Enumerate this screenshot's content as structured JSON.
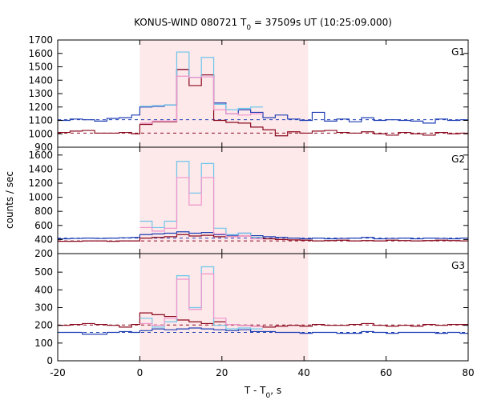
{
  "title_parts": {
    "prefix": "KONUS-WIND 080721 T",
    "sub": "0",
    "suffix": " = 37509s UT (10:25:09.000)"
  },
  "xlabel_parts": {
    "prefix": "T - T",
    "sub": "0",
    "suffix": ", s"
  },
  "chart_data": {
    "type": "line",
    "title": "KONUS-WIND 080721 T0 = 37509s UT (10:25:09.000)",
    "xlabel": "T - T0, s",
    "ylabel": "counts / sec",
    "xlim": [
      -20,
      80
    ],
    "x_ticks": [
      -20,
      0,
      20,
      40,
      60,
      80
    ],
    "x_tick_labels": [
      "-20",
      "0",
      "20",
      "40",
      "60",
      "80"
    ],
    "highlight_interval": {
      "x": [
        0,
        41
      ],
      "color": "#fde8ea"
    },
    "colors": {
      "blue_solid": "#1f3fb4",
      "red_solid": "#8b0a1e",
      "cyan_light": "#6ec6ea",
      "pink_light": "#ee94cc",
      "blue_dash": "#1f3fb4",
      "red_dash": "#8b0a1e"
    },
    "panels": [
      {
        "label": "G1",
        "ylim": [
          900,
          1700
        ],
        "y_ticks": [
          900,
          1000,
          1100,
          1200,
          1300,
          1400,
          1500,
          1600,
          1700
        ],
        "y_tick_labels": [
          "900",
          "1000",
          "1100",
          "1200",
          "1300",
          "1400",
          "1500",
          "1600",
          "1700"
        ],
        "background_levels": {
          "blue": 1105,
          "red": 1005
        },
        "series": [
          {
            "color": "blue_solid",
            "style": "step",
            "width": 1.2,
            "edges": [
              -20,
              -17,
              -14,
              -11,
              -8,
              -5,
              -2,
              0,
              3,
              6,
              9,
              12,
              15,
              18,
              21,
              24,
              27,
              30,
              33,
              36,
              39,
              42,
              45,
              48,
              51,
              54,
              57,
              60,
              63,
              66,
              69,
              72,
              75,
              78,
              80
            ],
            "values": [
              1100,
              1110,
              1105,
              1095,
              1115,
              1120,
              1140,
              1200,
              1205,
              1215,
              1480,
              1420,
              1440,
              1230,
              1150,
              1180,
              1160,
              1120,
              1140,
              1110,
              1100,
              1160,
              1095,
              1110,
              1090,
              1120,
              1100,
              1105,
              1100,
              1095,
              1080,
              1110,
              1100,
              1105
            ]
          },
          {
            "color": "red_solid",
            "style": "step",
            "width": 1.2,
            "edges": [
              -20,
              -17,
              -14,
              -11,
              -8,
              -5,
              -2,
              0,
              3,
              6,
              9,
              12,
              15,
              18,
              21,
              24,
              27,
              30,
              33,
              36,
              39,
              42,
              45,
              48,
              51,
              54,
              57,
              60,
              63,
              66,
              69,
              72,
              75,
              78,
              80
            ],
            "values": [
              1010,
              1020,
              1025,
              1005,
              1005,
              1010,
              1000,
              1070,
              1090,
              1090,
              1480,
              1360,
              1440,
              1100,
              1085,
              1080,
              1050,
              1030,
              985,
              1015,
              1005,
              1020,
              1025,
              1010,
              1005,
              1015,
              1000,
              990,
              1010,
              1000,
              990,
              1010,
              1000,
              1005
            ]
          },
          {
            "color": "cyan_light",
            "style": "step",
            "width": 1.2,
            "edges": [
              0,
              3,
              6,
              9,
              12,
              15,
              18,
              21,
              24,
              27,
              30
            ],
            "values": [
              1205,
              1210,
              1215,
              1610,
              1420,
              1570,
              1220,
              1180,
              1190,
              1200
            ]
          },
          {
            "color": "pink_light",
            "style": "step",
            "width": 1.2,
            "edges": [
              0,
              3,
              6,
              9,
              12,
              15,
              18,
              21,
              24,
              27,
              30
            ],
            "values": [
              1080,
              1095,
              1095,
              1430,
              1420,
              1425,
              1180,
              1150,
              1140,
              1150
            ]
          }
        ]
      },
      {
        "label": "G2",
        "ylim": [
          200,
          1700
        ],
        "y_ticks": [
          200,
          400,
          600,
          800,
          1000,
          1200,
          1400,
          1600
        ],
        "y_tick_labels": [
          "200",
          "400",
          "600",
          "800",
          "1000",
          "1200",
          "1400",
          "1600"
        ],
        "background_levels": {
          "blue": 420,
          "red": 380
        },
        "series": [
          {
            "color": "blue_solid",
            "style": "step",
            "width": 1.2,
            "edges": [
              -20,
              -17,
              -14,
              -11,
              -8,
              -5,
              -2,
              0,
              3,
              6,
              9,
              12,
              15,
              18,
              21,
              24,
              27,
              30,
              33,
              36,
              39,
              42,
              45,
              48,
              51,
              54,
              57,
              60,
              63,
              66,
              69,
              72,
              75,
              78,
              80
            ],
            "values": [
              410,
              415,
              420,
              415,
              420,
              425,
              430,
              470,
              480,
              490,
              510,
              490,
              500,
              470,
              460,
              490,
              455,
              440,
              430,
              420,
              410,
              420,
              410,
              415,
              420,
              430,
              410,
              415,
              420,
              410,
              420,
              415,
              410,
              420
            ]
          },
          {
            "color": "red_solid",
            "style": "step",
            "width": 1.2,
            "edges": [
              -20,
              -17,
              -14,
              -11,
              -8,
              -5,
              -2,
              0,
              3,
              6,
              9,
              12,
              15,
              18,
              21,
              24,
              27,
              30,
              33,
              36,
              39,
              42,
              45,
              48,
              51,
              54,
              57,
              60,
              63,
              66,
              69,
              72,
              75,
              78,
              80
            ],
            "values": [
              375,
              375,
              380,
              380,
              375,
              380,
              380,
              420,
              430,
              440,
              470,
              450,
              460,
              440,
              440,
              450,
              430,
              410,
              400,
              395,
              390,
              380,
              385,
              390,
              380,
              385,
              380,
              390,
              385,
              380,
              385,
              390,
              385,
              380
            ]
          },
          {
            "color": "cyan_light",
            "style": "step",
            "width": 1.2,
            "edges": [
              0,
              3,
              6,
              9,
              12,
              15,
              18,
              21,
              24,
              27,
              30
            ],
            "values": [
              660,
              570,
              660,
              1510,
              1060,
              1480,
              560,
              470,
              490,
              430
            ]
          },
          {
            "color": "pink_light",
            "style": "step",
            "width": 1.2,
            "edges": [
              0,
              3,
              6,
              9,
              12,
              15,
              18,
              21,
              24,
              27,
              30
            ],
            "values": [
              570,
              520,
              560,
              1280,
              890,
              1280,
              480,
              440,
              450,
              410
            ]
          }
        ]
      },
      {
        "label": "G3",
        "ylim": [
          0,
          600
        ],
        "y_ticks": [
          0,
          100,
          200,
          300,
          400,
          500
        ],
        "y_tick_labels": [
          "0",
          "100",
          "200",
          "300",
          "400",
          "500"
        ],
        "background_levels": {
          "blue": 160,
          "red": 202
        },
        "series": [
          {
            "color": "blue_solid",
            "style": "step",
            "width": 1.2,
            "edges": [
              -20,
              -17,
              -14,
              -11,
              -8,
              -5,
              -2,
              0,
              3,
              6,
              9,
              12,
              15,
              18,
              21,
              24,
              27,
              30,
              33,
              36,
              39,
              42,
              45,
              48,
              51,
              54,
              57,
              60,
              63,
              66,
              69,
              72,
              75,
              78,
              80
            ],
            "values": [
              160,
              160,
              150,
              150,
              160,
              165,
              160,
              170,
              180,
              175,
              180,
              185,
              180,
              175,
              170,
              175,
              165,
              165,
              160,
              160,
              155,
              160,
              160,
              155,
              155,
              165,
              160,
              155,
              160,
              160,
              160,
              155,
              160,
              155
            ]
          },
          {
            "color": "red_solid",
            "style": "step",
            "width": 1.2,
            "edges": [
              -20,
              -17,
              -14,
              -11,
              -8,
              -5,
              -2,
              0,
              3,
              6,
              9,
              12,
              15,
              18,
              21,
              24,
              27,
              30,
              33,
              36,
              39,
              42,
              45,
              48,
              51,
              54,
              57,
              60,
              63,
              66,
              69,
              72,
              75,
              78,
              80
            ],
            "values": [
              200,
              205,
              210,
              205,
              200,
              190,
              205,
              270,
              260,
              250,
              230,
              220,
              210,
              220,
              205,
              200,
              195,
              190,
              195,
              200,
              195,
              205,
              200,
              200,
              205,
              210,
              200,
              195,
              200,
              195,
              205,
              200,
              205,
              205
            ]
          },
          {
            "color": "cyan_light",
            "style": "step",
            "width": 1.2,
            "edges": [
              0,
              3,
              6,
              9,
              12,
              15,
              18,
              21,
              24,
              27,
              30
            ],
            "values": [
              240,
              190,
              220,
              480,
              300,
              530,
              200,
              180,
              185,
              180
            ]
          },
          {
            "color": "pink_light",
            "style": "step",
            "width": 1.2,
            "edges": [
              0,
              3,
              6,
              9,
              12,
              15,
              18,
              21,
              24,
              27,
              30
            ],
            "values": [
              210,
              200,
              240,
              460,
              290,
              490,
              240,
              205,
              200,
              195
            ]
          }
        ]
      }
    ]
  }
}
